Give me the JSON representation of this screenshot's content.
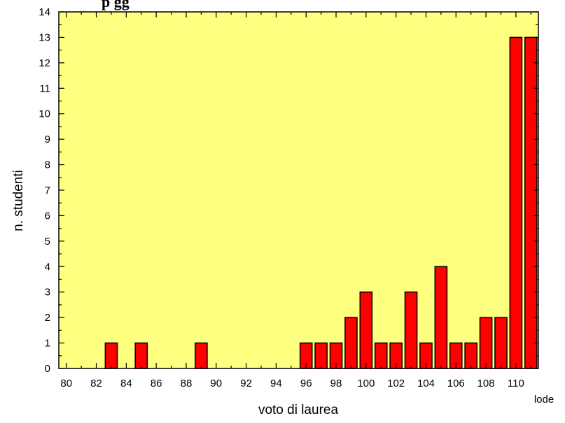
{
  "chart_data": {
    "type": "bar",
    "title": "p                    gg",
    "xlabel": "voto di laurea",
    "ylabel": "n. studenti",
    "ylim": [
      0,
      14
    ],
    "xlim": [
      79.5,
      111.5
    ],
    "x_ticks": [
      "80",
      "82",
      "84",
      "86",
      "88",
      "90",
      "92",
      "94",
      "96",
      "98",
      "100",
      "102",
      "104",
      "106",
      "108",
      "110"
    ],
    "extra_x_tick": "lode",
    "y_ticks": [
      0,
      1,
      2,
      3,
      4,
      5,
      6,
      7,
      8,
      9,
      10,
      11,
      12,
      13,
      14
    ],
    "categories": [
      "83",
      "85",
      "89",
      "96",
      "97",
      "98",
      "99",
      "100",
      "101",
      "102",
      "103",
      "104",
      "105",
      "106",
      "107",
      "108",
      "109",
      "110",
      "lode"
    ],
    "values": [
      1,
      1,
      1,
      1,
      1,
      1,
      2,
      3,
      1,
      1,
      3,
      1,
      4,
      1,
      1,
      2,
      2,
      13,
      13
    ],
    "colors": {
      "plot_background": "#FFFF80",
      "bar_fill": "#FF0000",
      "bar_stroke": "#000000"
    },
    "grid": false,
    "legend": "none"
  }
}
